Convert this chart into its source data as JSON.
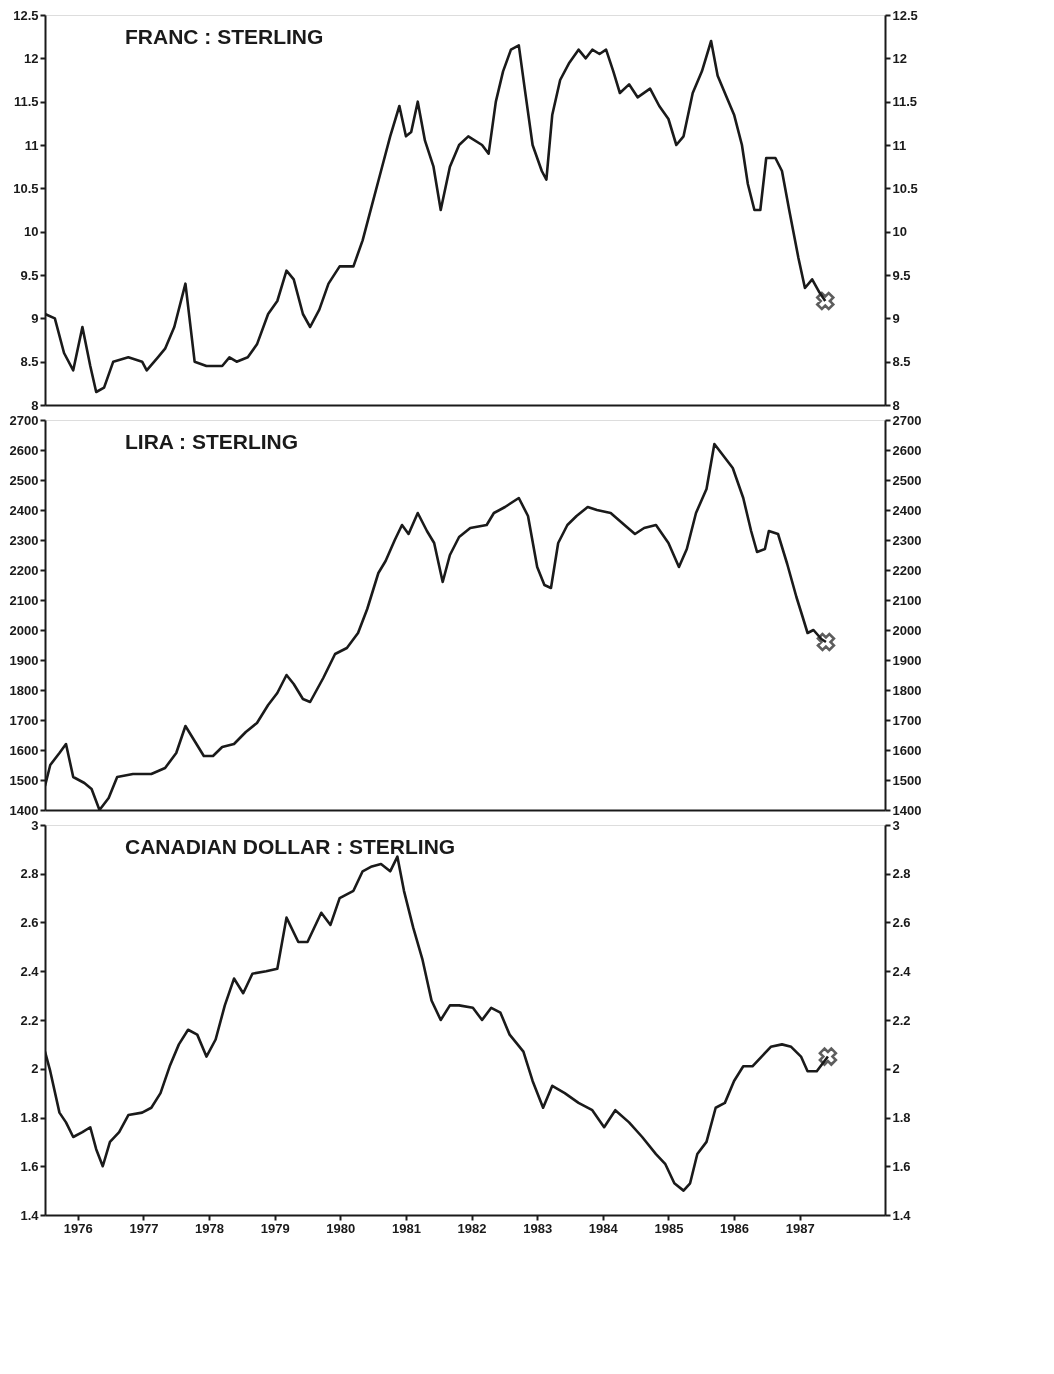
{
  "chart_data": [
    {
      "type": "line",
      "title": "FRANC : STERLING",
      "xlim": [
        1976.0,
        1988.8
      ],
      "ylim": [
        8,
        12.5
      ],
      "yticks": [
        8,
        8.5,
        9,
        9.5,
        10,
        10.5,
        11,
        11.5,
        12,
        12.5
      ],
      "y2lim": [
        8,
        12.5
      ],
      "y2ticks": [
        8,
        8.5,
        9,
        9.5,
        10,
        10.5,
        11,
        11.5,
        12,
        12.5
      ],
      "tick_labels": "y",
      "grid": false,
      "line_style": "solid",
      "series": [
        {
          "type": "line",
          "color": "#1a1a1a",
          "x": [
            1976.0,
            1976.15,
            1976.29,
            1976.43,
            1976.57,
            1976.69,
            1976.78,
            1976.9,
            1977.04,
            1977.27,
            1977.48,
            1977.55,
            1977.72,
            1977.83,
            1977.97,
            1978.14,
            1978.28,
            1978.46,
            1978.7,
            1978.81,
            1978.92,
            1979.09,
            1979.23,
            1979.4,
            1979.54,
            1979.68,
            1979.79,
            1979.93,
            1980.04,
            1980.18,
            1980.32,
            1980.49,
            1980.7,
            1980.84,
            1980.98,
            1981.12,
            1981.26,
            1981.4,
            1981.5,
            1981.58,
            1981.68,
            1981.79,
            1981.92,
            1982.03,
            1982.17,
            1982.31,
            1982.45,
            1982.66,
            1982.76,
            1982.87,
            1982.98,
            1983.1,
            1983.22,
            1983.31,
            1983.43,
            1983.57,
            1983.64,
            1983.73,
            1983.85,
            1983.99,
            1984.13,
            1984.24,
            1984.34,
            1984.45,
            1984.55,
            1984.66,
            1984.76,
            1984.9,
            1985.03,
            1985.22,
            1985.36,
            1985.5,
            1985.62,
            1985.73,
            1985.87,
            1986.01,
            1986.15,
            1986.25,
            1986.36,
            1986.5,
            1986.62,
            1986.71,
            1986.81,
            1986.9,
            1986.99,
            1987.13,
            1987.23,
            1987.34,
            1987.48,
            1987.58,
            1987.69,
            1987.8,
            1987.89
          ],
          "values": [
            9.05,
            9.0,
            8.6,
            8.4,
            8.9,
            8.45,
            8.15,
            8.2,
            8.5,
            8.55,
            8.5,
            8.4,
            8.55,
            8.65,
            8.9,
            9.4,
            8.5,
            8.45,
            8.45,
            8.55,
            8.5,
            8.55,
            8.7,
            9.05,
            9.2,
            9.55,
            9.45,
            9.05,
            8.9,
            9.1,
            9.4,
            9.6,
            9.6,
            9.9,
            10.3,
            10.7,
            11.1,
            11.45,
            11.1,
            11.15,
            11.5,
            11.05,
            10.75,
            10.25,
            10.75,
            11.0,
            11.1,
            11.0,
            10.9,
            11.5,
            11.85,
            12.1,
            12.15,
            11.65,
            11.0,
            10.7,
            10.6,
            11.35,
            11.75,
            11.95,
            12.1,
            12.0,
            12.1,
            12.05,
            12.1,
            11.85,
            11.6,
            11.7,
            11.55,
            11.65,
            11.45,
            11.3,
            11.0,
            11.1,
            11.6,
            11.85,
            12.2,
            11.8,
            11.6,
            11.35,
            11.0,
            10.55,
            10.25,
            10.25,
            10.85,
            10.85,
            10.7,
            10.25,
            9.7,
            9.35,
            9.45,
            9.3,
            9.2
          ]
        },
        {
          "type": "scatter",
          "marker": "cross",
          "color": "#1a1a1a",
          "x": [
            1987.89
          ],
          "values": [
            9.2
          ]
        }
      ]
    },
    {
      "type": "line",
      "title": "LIRA : STERLING",
      "xlim": [
        1976.0,
        1988.8
      ],
      "ylim": [
        1400,
        2700
      ],
      "yticks": [
        1400,
        1500,
        1600,
        1700,
        1800,
        1900,
        2000,
        2100,
        2200,
        2300,
        2400,
        2500,
        2600,
        2700
      ],
      "y2lim": [
        1400,
        2700
      ],
      "y2ticks": [
        1400,
        1500,
        1600,
        1700,
        1800,
        1900,
        2000,
        2100,
        2200,
        2300,
        2400,
        2500,
        2600,
        2700
      ],
      "tick_labels": "y",
      "grid": false,
      "line_style": "solid",
      "series": [
        {
          "type": "line",
          "color": "#1a1a1a",
          "x": [
            1976.0,
            1976.08,
            1976.22,
            1976.32,
            1976.43,
            1976.6,
            1976.71,
            1976.83,
            1976.97,
            1977.1,
            1977.34,
            1977.62,
            1977.83,
            1978.0,
            1978.14,
            1978.28,
            1978.42,
            1978.56,
            1978.7,
            1978.88,
            1979.06,
            1979.23,
            1979.4,
            1979.54,
            1979.68,
            1979.79,
            1979.93,
            1980.04,
            1980.24,
            1980.42,
            1980.6,
            1980.77,
            1980.91,
            1981.08,
            1981.19,
            1981.33,
            1981.44,
            1981.54,
            1981.68,
            1981.82,
            1981.93,
            1982.06,
            1982.17,
            1982.31,
            1982.48,
            1982.73,
            1982.84,
            1983.01,
            1983.22,
            1983.36,
            1983.5,
            1983.61,
            1983.71,
            1983.82,
            1983.96,
            1984.1,
            1984.27,
            1984.41,
            1984.62,
            1984.83,
            1984.99,
            1985.13,
            1985.31,
            1985.5,
            1985.66,
            1985.78,
            1985.92,
            1986.08,
            1986.2,
            1986.34,
            1986.48,
            1986.64,
            1986.76,
            1986.85,
            1986.97,
            1987.03,
            1987.17,
            1987.31,
            1987.45,
            1987.55,
            1987.62,
            1987.71,
            1987.83,
            1987.9
          ],
          "values": [
            1480,
            1550,
            1590,
            1620,
            1510,
            1490,
            1470,
            1400,
            1440,
            1510,
            1520,
            1520,
            1540,
            1590,
            1680,
            1630,
            1580,
            1580,
            1610,
            1620,
            1660,
            1690,
            1750,
            1790,
            1850,
            1820,
            1770,
            1760,
            1840,
            1920,
            1940,
            1990,
            2070,
            2190,
            2230,
            2300,
            2350,
            2320,
            2390,
            2330,
            2290,
            2160,
            2250,
            2310,
            2340,
            2350,
            2390,
            2410,
            2440,
            2380,
            2210,
            2150,
            2140,
            2290,
            2350,
            2380,
            2410,
            2400,
            2390,
            2350,
            2320,
            2340,
            2350,
            2290,
            2210,
            2270,
            2390,
            2470,
            2620,
            2580,
            2540,
            2440,
            2330,
            2260,
            2270,
            2330,
            2320,
            2220,
            2110,
            2040,
            1990,
            2000,
            1970,
            1960
          ]
        },
        {
          "type": "scatter",
          "marker": "cross",
          "color": "#1a1a1a",
          "x": [
            1987.9
          ],
          "values": [
            1960
          ]
        }
      ]
    },
    {
      "type": "line",
      "title": "CANADIAN DOLLAR : STERLING",
      "xlim": [
        1976.0,
        1988.8
      ],
      "xticks": [
        {
          "value": 1976.5,
          "label": "1976"
        },
        {
          "value": 1977.5,
          "label": "1977"
        },
        {
          "value": 1978.5,
          "label": "1978"
        },
        {
          "value": 1979.5,
          "label": "1979"
        },
        {
          "value": 1980.5,
          "label": "1980"
        },
        {
          "value": 1981.5,
          "label": "1981"
        },
        {
          "value": 1982.5,
          "label": "1982"
        },
        {
          "value": 1983.5,
          "label": "1983"
        },
        {
          "value": 1984.5,
          "label": "1984"
        },
        {
          "value": 1985.5,
          "label": "1985"
        },
        {
          "value": 1986.5,
          "label": "1986"
        },
        {
          "value": 1987.5,
          "label": "1987"
        }
      ],
      "ylim": [
        1.4,
        3
      ],
      "yticks": [
        1.4,
        1.6,
        1.8,
        2,
        2.2,
        2.4,
        2.6,
        2.8,
        3
      ],
      "y2lim": [
        1.4,
        3
      ],
      "y2ticks": [
        1.4,
        1.6,
        1.8,
        2,
        2.2,
        2.4,
        2.6,
        2.8,
        3
      ],
      "grid": false,
      "line_style": "solid",
      "series": [
        {
          "type": "line",
          "color": "#1a1a1a",
          "x": [
            1976.0,
            1976.08,
            1976.22,
            1976.32,
            1976.43,
            1976.57,
            1976.69,
            1976.78,
            1976.88,
            1976.99,
            1977.13,
            1977.27,
            1977.48,
            1977.62,
            1977.76,
            1977.9,
            1978.04,
            1978.18,
            1978.32,
            1978.46,
            1978.6,
            1978.74,
            1978.88,
            1979.02,
            1979.16,
            1979.37,
            1979.54,
            1979.68,
            1979.86,
            1980.0,
            1980.21,
            1980.35,
            1980.49,
            1980.7,
            1980.84,
            1980.98,
            1981.12,
            1981.26,
            1981.37,
            1981.47,
            1981.61,
            1981.75,
            1981.89,
            1982.03,
            1982.17,
            1982.31,
            1982.52,
            1982.66,
            1982.8,
            1982.94,
            1983.08,
            1983.29,
            1983.43,
            1983.59,
            1983.73,
            1983.92,
            1984.13,
            1984.34,
            1984.52,
            1984.69,
            1984.9,
            1985.1,
            1985.31,
            1985.45,
            1985.59,
            1985.73,
            1985.83,
            1985.94,
            1986.08,
            1986.22,
            1986.36,
            1986.5,
            1986.64,
            1986.78,
            1986.92,
            1987.06,
            1987.23,
            1987.37,
            1987.52,
            1987.62,
            1987.76,
            1987.93
          ],
          "values": [
            2.07,
            1.99,
            1.82,
            1.78,
            1.72,
            1.74,
            1.76,
            1.67,
            1.6,
            1.7,
            1.74,
            1.81,
            1.82,
            1.84,
            1.9,
            2.01,
            2.1,
            2.16,
            2.14,
            2.05,
            2.12,
            2.26,
            2.37,
            2.31,
            2.39,
            2.4,
            2.41,
            2.62,
            2.52,
            2.52,
            2.64,
            2.59,
            2.7,
            2.73,
            2.81,
            2.83,
            2.84,
            2.81,
            2.87,
            2.73,
            2.58,
            2.45,
            2.28,
            2.2,
            2.26,
            2.26,
            2.25,
            2.2,
            2.25,
            2.23,
            2.14,
            2.07,
            1.95,
            1.84,
            1.93,
            1.9,
            1.86,
            1.83,
            1.76,
            1.83,
            1.78,
            1.72,
            1.65,
            1.61,
            1.53,
            1.5,
            1.53,
            1.65,
            1.7,
            1.84,
            1.86,
            1.95,
            2.01,
            2.01,
            2.05,
            2.09,
            2.1,
            2.09,
            2.05,
            1.99,
            1.99,
            2.05
          ]
        },
        {
          "type": "scatter",
          "marker": "cross",
          "color": "#1a1a1a",
          "x": [
            1987.93
          ],
          "values": [
            2.05
          ]
        }
      ]
    }
  ]
}
